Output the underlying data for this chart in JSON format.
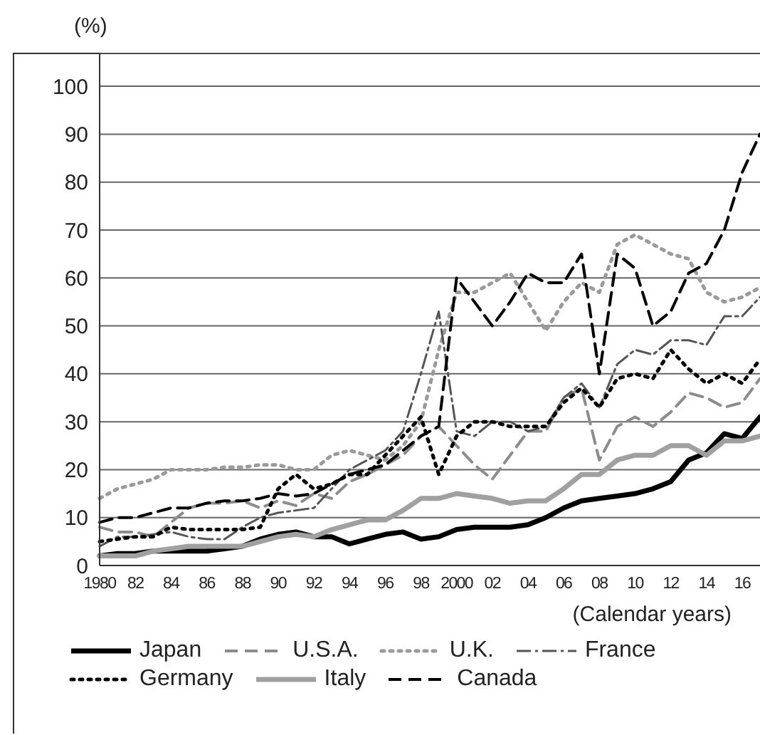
{
  "chart_data": {
    "type": "line",
    "ylabel": "(%)",
    "xlabel": "(Calendar years)",
    "categories": [
      "1980",
      null,
      "82",
      null,
      "84",
      null,
      "86",
      null,
      "88",
      null,
      "90",
      null,
      "92",
      null,
      "94",
      null,
      "96",
      null,
      "98",
      null,
      "2000",
      null,
      "02",
      null,
      "04",
      null,
      "06",
      null,
      "08",
      null,
      "10",
      null,
      "12",
      null,
      "14",
      null,
      "16",
      null
    ],
    "series": [
      {
        "name": "Japan",
        "color": "#000000",
        "line_style": "solid",
        "values": [
          2,
          2.5,
          2.5,
          3,
          3,
          3,
          3,
          3.5,
          4,
          5.5,
          6.5,
          7,
          6,
          6,
          4.5,
          5.5,
          6.5,
          7,
          5.5,
          6,
          7.5,
          8,
          8,
          8,
          8.5,
          10,
          12,
          13.5,
          14,
          14.5,
          15,
          16,
          17.5,
          22,
          23.5,
          27.5,
          26.5,
          31
        ]
      },
      {
        "name": "U.S.A.",
        "color": "#8c8c8c",
        "line_style": "dashed",
        "values": [
          8,
          7,
          7,
          6,
          9,
          12,
          13,
          13,
          13.5,
          12,
          13.5,
          12.5,
          15,
          14,
          17.5,
          19,
          21,
          23,
          27,
          29,
          25,
          21,
          18,
          23,
          28,
          28,
          35,
          37,
          22,
          29,
          31,
          29,
          32,
          36,
          35,
          33,
          34,
          39
        ]
      },
      {
        "name": "U.K.",
        "color": "#9a9a9a",
        "line_style": "dotted",
        "values": [
          14,
          16,
          17,
          18,
          20,
          20,
          20,
          20.5,
          20.5,
          21,
          21,
          20,
          20,
          23,
          24,
          23,
          22,
          25,
          30,
          45,
          57,
          57,
          59,
          61,
          55,
          49,
          55,
          59,
          57,
          67,
          69,
          67,
          65,
          64,
          57,
          55,
          56,
          58
        ]
      },
      {
        "name": "France",
        "color": "#555555",
        "line_style": "dashdot",
        "values": [
          4,
          6,
          6,
          6.5,
          7,
          6,
          5.5,
          5.5,
          8,
          10,
          11,
          11.5,
          12,
          16,
          20,
          22,
          24,
          28,
          40,
          53,
          28,
          27,
          30,
          30,
          28,
          29,
          35,
          38,
          33,
          42,
          45,
          44,
          47,
          47,
          46,
          52,
          52,
          56
        ]
      },
      {
        "name": "Germany",
        "color": "#000000",
        "line_style": "dotted",
        "values": [
          5,
          5.5,
          6,
          6,
          8,
          7.5,
          7.5,
          7.5,
          7.5,
          8,
          16,
          19,
          16,
          17,
          19,
          19,
          23,
          27,
          31,
          19,
          27,
          30,
          30,
          29,
          29,
          29,
          34,
          37,
          33,
          39,
          40,
          39,
          45,
          41,
          38,
          40,
          38,
          43
        ]
      },
      {
        "name": "Italy",
        "color": "#a0a0a0",
        "line_style": "solid",
        "values": [
          2,
          2,
          2,
          3,
          3.5,
          4,
          4,
          4,
          4,
          5,
          6,
          6.5,
          6,
          7.5,
          8.5,
          9.5,
          9.5,
          11.5,
          14,
          14,
          15,
          14.5,
          14,
          13,
          13.5,
          13.5,
          16,
          19,
          19,
          22,
          23,
          23,
          25,
          25,
          23,
          26,
          26,
          27
        ]
      },
      {
        "name": "Canada",
        "color": "#000000",
        "line_style": "dashed",
        "values": [
          9,
          10,
          10,
          11,
          12,
          12,
          13,
          13.5,
          13.5,
          14,
          15,
          14.5,
          15,
          17,
          19,
          20,
          21,
          24,
          27,
          29,
          60,
          55,
          50,
          55,
          61,
          59,
          59,
          65,
          40,
          65,
          62,
          50,
          53,
          61,
          63,
          70,
          82,
          90
        ]
      }
    ],
    "ylim": [
      0,
      107
    ],
    "yticks": [
      0,
      10,
      20,
      30,
      40,
      50,
      60,
      70,
      80,
      90,
      100
    ],
    "grid": "y",
    "legend": "bottom"
  }
}
